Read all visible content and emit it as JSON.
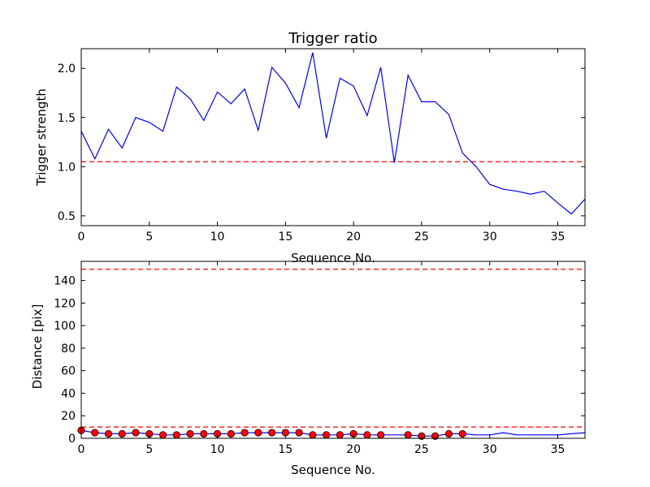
{
  "chart_data": [
    {
      "type": "line",
      "title": "Trigger ratio",
      "xlabel": "Sequence No.",
      "ylabel": "Trigger strength",
      "xlim": [
        0,
        37
      ],
      "ylim": [
        0.4,
        2.2
      ],
      "xticks": [
        0,
        5,
        10,
        15,
        20,
        25,
        30,
        35
      ],
      "yticks": [
        0.5,
        1.0,
        1.5,
        2.0
      ],
      "ytick_labels": [
        "0.5",
        "1.0",
        "1.5",
        "2.0"
      ],
      "grid": false,
      "line_color": "#0000ff",
      "ref_color": "#ff0000",
      "reference_lines": [
        1.05
      ],
      "x": [
        0,
        1,
        2,
        3,
        4,
        5,
        6,
        7,
        8,
        9,
        10,
        11,
        12,
        13,
        14,
        15,
        16,
        17,
        18,
        19,
        20,
        21,
        22,
        23,
        24,
        25,
        26,
        27,
        28,
        29,
        30,
        31,
        32,
        33,
        34,
        35,
        36,
        37
      ],
      "values": [
        1.36,
        1.08,
        1.38,
        1.19,
        1.5,
        1.45,
        1.36,
        1.81,
        1.69,
        1.47,
        1.76,
        1.64,
        1.79,
        1.37,
        2.01,
        1.85,
        1.6,
        2.16,
        1.29,
        1.9,
        1.82,
        1.52,
        2.01,
        1.04,
        1.93,
        1.66,
        1.66,
        1.53,
        1.14,
        1.0,
        0.82,
        0.77,
        0.75,
        0.72,
        0.75,
        0.63,
        0.52,
        0.67
      ]
    },
    {
      "type": "line",
      "title": "",
      "xlabel": "Sequence No.",
      "ylabel": "Distance [pix]",
      "xlim": [
        0,
        37
      ],
      "ylim": [
        0,
        157
      ],
      "xticks": [
        0,
        5,
        10,
        15,
        20,
        25,
        30,
        35
      ],
      "yticks": [
        0,
        20,
        40,
        60,
        80,
        100,
        120,
        140
      ],
      "ytick_labels": [
        "0",
        "20",
        "40",
        "60",
        "80",
        "100",
        "120",
        "140"
      ],
      "grid": false,
      "line_color": "#0000ff",
      "ref_color": "#ff0000",
      "marker_color": "#ff0000",
      "reference_lines": [
        150,
        10
      ],
      "x": [
        0,
        1,
        2,
        3,
        4,
        5,
        6,
        7,
        8,
        9,
        10,
        11,
        12,
        13,
        14,
        15,
        16,
        17,
        18,
        19,
        20,
        21,
        22,
        23,
        24,
        25,
        26,
        27,
        28,
        29,
        30,
        31,
        32,
        33,
        34,
        35,
        36,
        37
      ],
      "values": [
        7,
        5,
        4,
        4,
        5,
        4,
        3,
        3,
        4,
        4,
        4,
        4,
        5,
        5,
        5,
        5,
        5,
        3,
        3,
        3,
        4,
        3,
        3,
        3,
        3,
        2,
        2,
        4,
        4,
        3,
        3,
        5,
        3,
        3,
        3,
        3,
        4,
        5
      ],
      "marker_x": [
        0,
        1,
        2,
        3,
        4,
        5,
        6,
        7,
        8,
        9,
        10,
        11,
        12,
        13,
        14,
        15,
        16,
        17,
        18,
        19,
        20,
        21,
        22,
        24,
        25,
        26,
        27,
        28
      ],
      "marker_values": [
        7,
        5,
        4,
        4,
        5,
        4,
        3,
        3,
        4,
        4,
        4,
        4,
        5,
        5,
        5,
        5,
        5,
        3,
        3,
        3,
        4,
        3,
        3,
        3,
        2,
        2,
        4,
        4
      ]
    }
  ]
}
